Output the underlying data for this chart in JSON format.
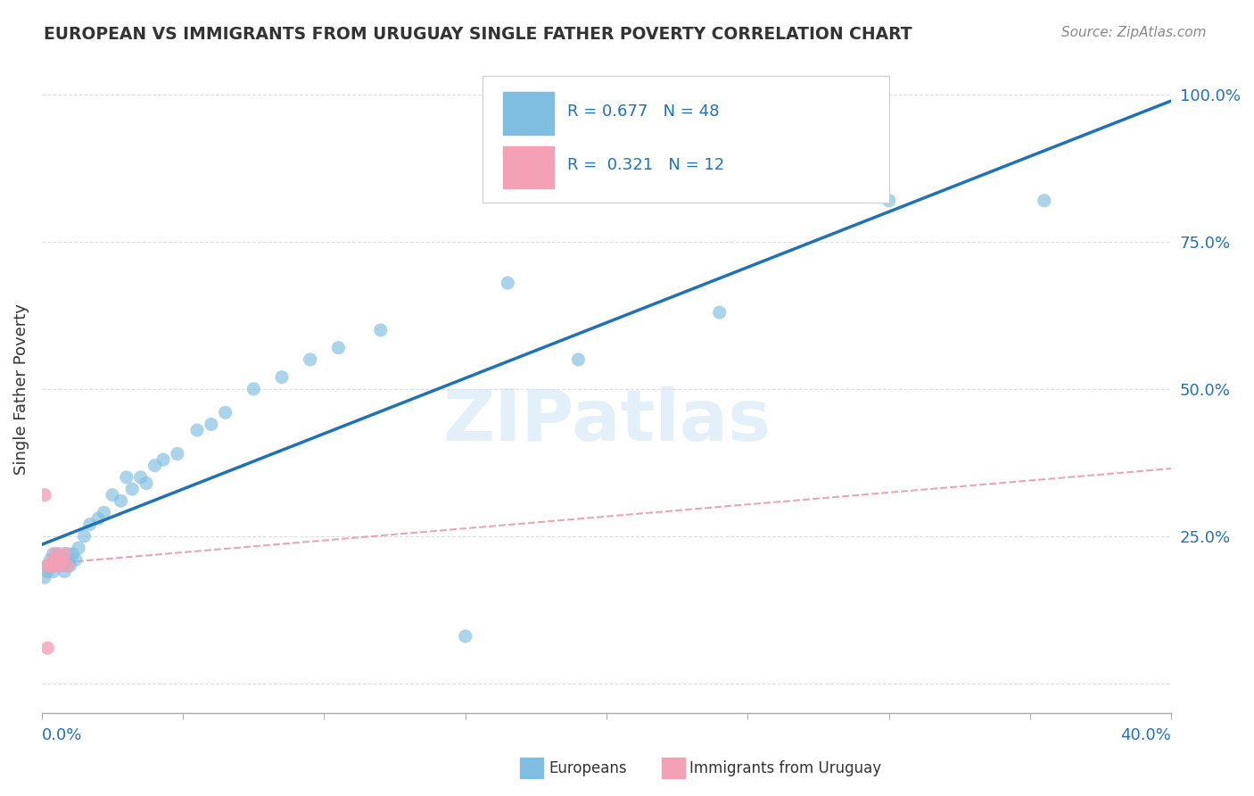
{
  "title": "EUROPEAN VS IMMIGRANTS FROM URUGUAY SINGLE FATHER POVERTY CORRELATION CHART",
  "source": "Source: ZipAtlas.com",
  "ylabel": "Single Father Poverty",
  "xlim": [
    0.0,
    0.4
  ],
  "ylim": [
    -0.05,
    1.05
  ],
  "y_ticks": [
    0.0,
    0.25,
    0.5,
    0.75,
    1.0
  ],
  "y_tick_labels": [
    "",
    "25.0%",
    "50.0%",
    "75.0%",
    "100.0%"
  ],
  "r_european": 0.677,
  "n_european": 48,
  "r_uruguay": 0.321,
  "n_uruguay": 12,
  "blue_color": "#7fbee0",
  "pink_color": "#f4a0b5",
  "blue_line_color": "#2171b5",
  "pink_dash_color": "#e08090",
  "watermark": "ZIPatlas",
  "blue_scatter": [
    [
      0.001,
      0.18
    ],
    [
      0.002,
      0.2
    ],
    [
      0.002,
      0.19
    ],
    [
      0.003,
      0.21
    ],
    [
      0.003,
      0.2
    ],
    [
      0.004,
      0.19
    ],
    [
      0.004,
      0.22
    ],
    [
      0.005,
      0.21
    ],
    [
      0.005,
      0.2
    ],
    [
      0.006,
      0.22
    ],
    [
      0.006,
      0.21
    ],
    [
      0.007,
      0.2
    ],
    [
      0.008,
      0.19
    ],
    [
      0.008,
      0.21
    ],
    [
      0.009,
      0.2
    ],
    [
      0.009,
      0.22
    ],
    [
      0.01,
      0.2
    ],
    [
      0.01,
      0.21
    ],
    [
      0.011,
      0.22
    ],
    [
      0.012,
      0.21
    ],
    [
      0.013,
      0.23
    ],
    [
      0.015,
      0.25
    ],
    [
      0.017,
      0.27
    ],
    [
      0.02,
      0.28
    ],
    [
      0.022,
      0.29
    ],
    [
      0.025,
      0.32
    ],
    [
      0.028,
      0.31
    ],
    [
      0.03,
      0.35
    ],
    [
      0.032,
      0.33
    ],
    [
      0.035,
      0.35
    ],
    [
      0.037,
      0.34
    ],
    [
      0.04,
      0.37
    ],
    [
      0.043,
      0.38
    ],
    [
      0.048,
      0.39
    ],
    [
      0.055,
      0.43
    ],
    [
      0.06,
      0.44
    ],
    [
      0.065,
      0.46
    ],
    [
      0.075,
      0.5
    ],
    [
      0.085,
      0.52
    ],
    [
      0.095,
      0.55
    ],
    [
      0.105,
      0.57
    ],
    [
      0.12,
      0.6
    ],
    [
      0.15,
      0.08
    ],
    [
      0.165,
      0.68
    ],
    [
      0.19,
      0.55
    ],
    [
      0.24,
      0.63
    ],
    [
      0.3,
      0.82
    ],
    [
      0.355,
      0.82
    ]
  ],
  "pink_scatter": [
    [
      0.001,
      0.32
    ],
    [
      0.002,
      0.2
    ],
    [
      0.003,
      0.2
    ],
    [
      0.004,
      0.21
    ],
    [
      0.005,
      0.2
    ],
    [
      0.005,
      0.22
    ],
    [
      0.006,
      0.21
    ],
    [
      0.006,
      0.2
    ],
    [
      0.007,
      0.21
    ],
    [
      0.008,
      0.22
    ],
    [
      0.009,
      0.2
    ],
    [
      0.002,
      0.06
    ]
  ]
}
